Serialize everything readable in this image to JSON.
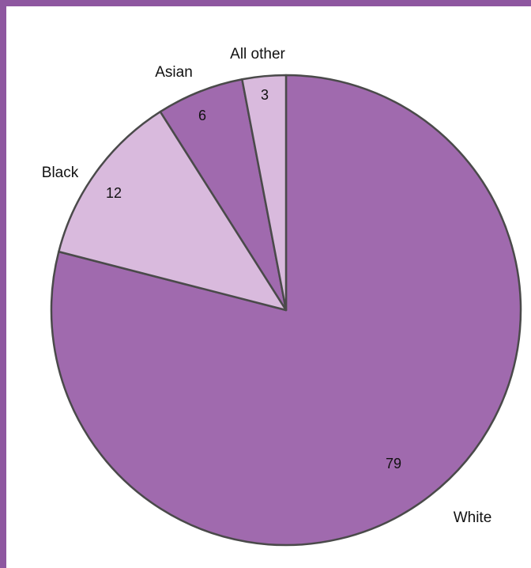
{
  "chart_data": {
    "type": "pie",
    "categories": [
      "White",
      "Black",
      "Asian",
      "All other"
    ],
    "values": [
      79,
      12,
      6,
      3
    ],
    "value_labels": [
      "79",
      "12",
      "6",
      "3"
    ],
    "colors": [
      "#a06aae",
      "#d9badd",
      "#a06aae",
      "#d9badd"
    ],
    "start_angle_deg": 0,
    "direction": "clockwise"
  },
  "colors": {
    "border": "#8e57a0",
    "slice_stroke": "#4a4a4a"
  }
}
